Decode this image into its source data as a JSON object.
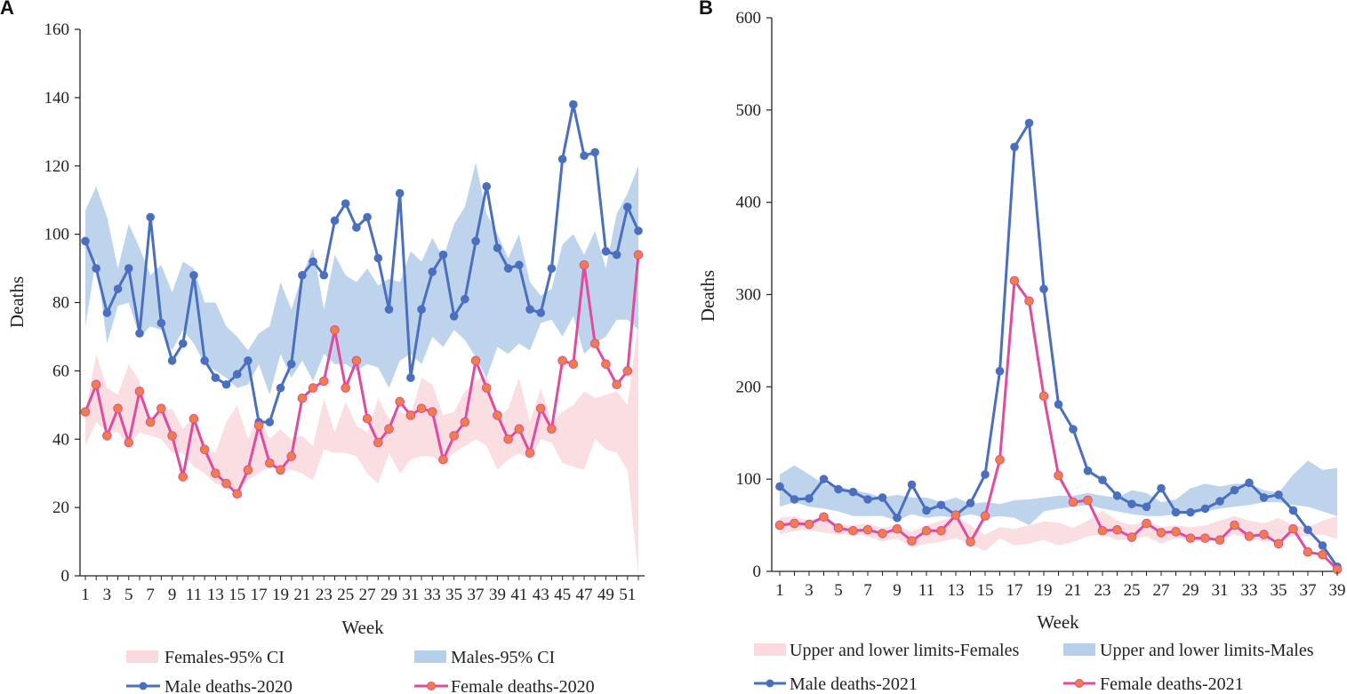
{
  "colors": {
    "male_line": "#4a6fbf",
    "female_line": "#e04b9f",
    "female_marker": "#f07f45",
    "male_band": "#b6cfea",
    "female_band": "#fbdadf",
    "axis": "#222222"
  },
  "chart_data": [
    {
      "type": "line",
      "panel_label": "A",
      "xlabel": "Week",
      "ylabel": "Deaths",
      "ylim": [
        0,
        160
      ],
      "yticks": [
        0,
        20,
        40,
        60,
        80,
        100,
        120,
        140,
        160
      ],
      "xlim": [
        1,
        52
      ],
      "xticks": [
        1,
        3,
        5,
        7,
        9,
        11,
        13,
        15,
        17,
        19,
        21,
        23,
        25,
        27,
        29,
        31,
        33,
        35,
        37,
        39,
        41,
        43,
        45,
        47,
        49,
        51
      ],
      "x": [
        1,
        2,
        3,
        4,
        5,
        6,
        7,
        8,
        9,
        10,
        11,
        12,
        13,
        14,
        15,
        16,
        17,
        18,
        19,
        20,
        21,
        22,
        23,
        24,
        25,
        26,
        27,
        28,
        29,
        30,
        31,
        32,
        33,
        34,
        35,
        36,
        37,
        38,
        39,
        40,
        41,
        42,
        43,
        44,
        45,
        46,
        47,
        48,
        49,
        50,
        51,
        52
      ],
      "bands": [
        {
          "name": "Females-95% CI",
          "upper": [
            48,
            65,
            55,
            53,
            62,
            57,
            45,
            48,
            49,
            43,
            47,
            37,
            36,
            45,
            50,
            40,
            47,
            40,
            43,
            40,
            41,
            38,
            52,
            42,
            51,
            44,
            42,
            52,
            46,
            48,
            47,
            58,
            56,
            47,
            48,
            54,
            57,
            59,
            46,
            49,
            58,
            45,
            55,
            45,
            48,
            50,
            54,
            52,
            53,
            54,
            50,
            75
          ],
          "lower": [
            38,
            45,
            42,
            42,
            38,
            42,
            41,
            40,
            36,
            36,
            32,
            30,
            27,
            26,
            25,
            28,
            30,
            32,
            31,
            31,
            30,
            28,
            37,
            36,
            36,
            35,
            30,
            27,
            36,
            30,
            34,
            35,
            35,
            33,
            36,
            38,
            40,
            38,
            31,
            34,
            36,
            34,
            40,
            39,
            33,
            32,
            31,
            40,
            37,
            36,
            31,
            0
          ]
        },
        {
          "name": "Males-95% CI",
          "upper": [
            107,
            114,
            105,
            90,
            103,
            96,
            88,
            91,
            83,
            92,
            90,
            80,
            80,
            73,
            70,
            66,
            71,
            73,
            86,
            78,
            88,
            96,
            78,
            94,
            88,
            86,
            90,
            85,
            87,
            86,
            95,
            92,
            99,
            93,
            103,
            108,
            121,
            106,
            100,
            93,
            100,
            86,
            82,
            84,
            97,
            100,
            94,
            101,
            90,
            106,
            112,
            120
          ],
          "lower": [
            73,
            93,
            68,
            79,
            80,
            70,
            73,
            72,
            66,
            72,
            68,
            62,
            60,
            58,
            55,
            56,
            62,
            53,
            65,
            58,
            63,
            57,
            65,
            62,
            62,
            60,
            62,
            61,
            55,
            63,
            65,
            62,
            70,
            67,
            72,
            69,
            64,
            58,
            67,
            65,
            68,
            66,
            74,
            75,
            70,
            76,
            65,
            68,
            70,
            75,
            75,
            72
          ]
        }
      ],
      "series": [
        {
          "name": "Male deaths-2020",
          "values": [
            98,
            90,
            77,
            84,
            90,
            71,
            105,
            74,
            63,
            68,
            88,
            63,
            58,
            56,
            59,
            63,
            45,
            45,
            55,
            62,
            88,
            92,
            88,
            104,
            109,
            102,
            105,
            93,
            78,
            112,
            58,
            78,
            89,
            94,
            76,
            81,
            98,
            114,
            96,
            90,
            91,
            78,
            77,
            90,
            122,
            138,
            123,
            124,
            95,
            94,
            108,
            101
          ]
        },
        {
          "name": "Female deaths-2020",
          "values": [
            48,
            56,
            41,
            49,
            39,
            54,
            45,
            49,
            41,
            29,
            46,
            37,
            30,
            27,
            24,
            31,
            44,
            33,
            31,
            35,
            52,
            55,
            57,
            72,
            55,
            63,
            46,
            39,
            43,
            51,
            47,
            49,
            48,
            34,
            41,
            45,
            63,
            55,
            47,
            40,
            43,
            36,
            49,
            43,
            63,
            62,
            91,
            68,
            62,
            56,
            60,
            94
          ]
        }
      ],
      "legend": [
        "Females-95% CI",
        "Males-95% CI",
        "Male deaths-2020",
        "Female deaths-2020"
      ]
    },
    {
      "type": "line",
      "panel_label": "B",
      "xlabel": "Week",
      "ylabel": "Deaths",
      "ylim": [
        0,
        600
      ],
      "yticks": [
        0,
        100,
        200,
        300,
        400,
        500,
        600
      ],
      "xlim": [
        1,
        39
      ],
      "xticks": [
        1,
        3,
        5,
        7,
        9,
        11,
        13,
        15,
        17,
        19,
        21,
        23,
        25,
        27,
        29,
        31,
        33,
        35,
        37,
        39
      ],
      "x": [
        1,
        2,
        3,
        4,
        5,
        6,
        7,
        8,
        9,
        10,
        11,
        12,
        13,
        14,
        15,
        16,
        17,
        18,
        19,
        20,
        21,
        22,
        23,
        24,
        25,
        26,
        27,
        28,
        29,
        30,
        31,
        32,
        33,
        34,
        35,
        36,
        37,
        38,
        39
      ],
      "bands": [
        {
          "name": "Upper and lower limits-Females",
          "upper": [
            58,
            60,
            55,
            60,
            50,
            50,
            52,
            47,
            50,
            43,
            50,
            55,
            60,
            50,
            40,
            48,
            46,
            50,
            54,
            53,
            47,
            55,
            66,
            55,
            50,
            55,
            48,
            50,
            48,
            50,
            55,
            60,
            55,
            52,
            58,
            50,
            48,
            55,
            60
          ],
          "lower": [
            40,
            44,
            45,
            42,
            40,
            40,
            38,
            32,
            36,
            26,
            30,
            32,
            36,
            30,
            22,
            36,
            28,
            30,
            34,
            28,
            32,
            38,
            40,
            34,
            35,
            38,
            30,
            36,
            34,
            32,
            34,
            40,
            36,
            32,
            35,
            38,
            38,
            40,
            35
          ]
        },
        {
          "name": "Upper and lower limits-Males",
          "upper": [
            105,
            115,
            105,
            95,
            92,
            88,
            85,
            80,
            83,
            80,
            80,
            75,
            80,
            73,
            75,
            73,
            77,
            78,
            80,
            82,
            82,
            85,
            82,
            80,
            88,
            85,
            75,
            78,
            90,
            95,
            92,
            95,
            95,
            88,
            85,
            105,
            120,
            110,
            112
          ],
          "lower": [
            70,
            75,
            70,
            68,
            65,
            60,
            60,
            60,
            55,
            62,
            58,
            60,
            58,
            62,
            58,
            60,
            58,
            50,
            65,
            68,
            70,
            72,
            68,
            65,
            62,
            60,
            60,
            62,
            62,
            65,
            68,
            70,
            72,
            75,
            75,
            72,
            70,
            65,
            60
          ]
        }
      ],
      "series": [
        {
          "name": "Male deaths-2021",
          "values": [
            92,
            78,
            79,
            100,
            89,
            86,
            78,
            80,
            58,
            94,
            66,
            72,
            61,
            74,
            105,
            217,
            460,
            486,
            306,
            181,
            154,
            109,
            99,
            82,
            73,
            70,
            90,
            64,
            64,
            68,
            76,
            88,
            96,
            80,
            83,
            66,
            45,
            28,
            5
          ]
        },
        {
          "name": "Female deaths-2021",
          "values": [
            50,
            52,
            51,
            59,
            47,
            44,
            45,
            41,
            46,
            33,
            44,
            44,
            61,
            32,
            60,
            121,
            315,
            293,
            190,
            104,
            75,
            77,
            44,
            45,
            37,
            52,
            42,
            43,
            36,
            36,
            34,
            50,
            38,
            40,
            30,
            46,
            21,
            18,
            2
          ]
        }
      ],
      "legend": [
        "Upper and lower limits-Females",
        "Upper and lower limits-Males",
        "Male deaths-2021",
        "Female deaths-2021"
      ]
    }
  ]
}
